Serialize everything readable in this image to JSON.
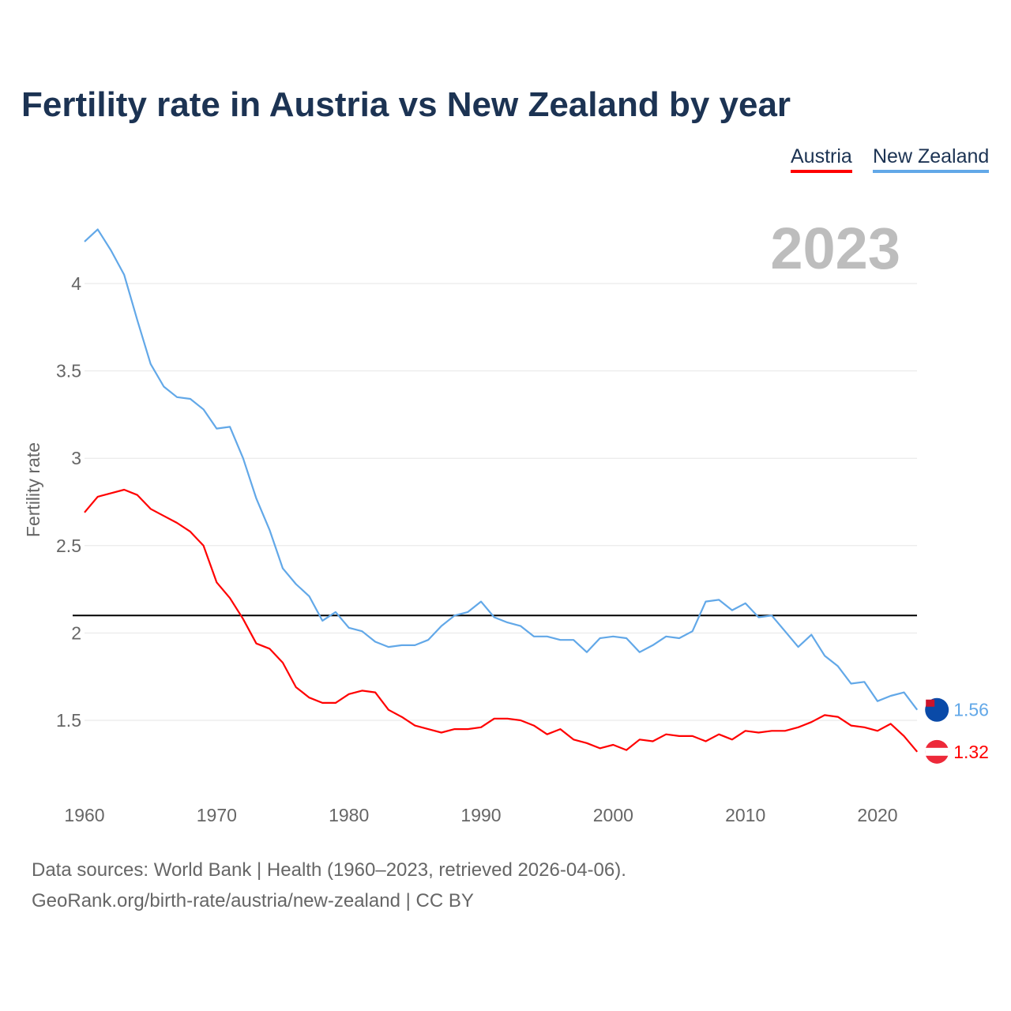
{
  "chart_data": {
    "type": "line",
    "title": "Fertility rate in Austria vs New Zealand by year",
    "xlabel": "",
    "ylabel": "Fertility rate",
    "xlim": [
      1960,
      2023
    ],
    "ylim": [
      1.1,
      4.35
    ],
    "x_ticks": [
      1960,
      1970,
      1980,
      1990,
      2000,
      2010,
      2020
    ],
    "y_ticks": [
      1.5,
      2,
      2.5,
      3,
      3.5,
      4
    ],
    "y_tick_labels": [
      "1.5",
      "2",
      "2.5",
      "3",
      "3.5",
      "4"
    ],
    "grid": true,
    "legend_position": "top-right",
    "year_label": "2023",
    "reference_line": 2.1,
    "x": [
      1960,
      1961,
      1962,
      1963,
      1964,
      1965,
      1966,
      1967,
      1968,
      1969,
      1970,
      1971,
      1972,
      1973,
      1974,
      1975,
      1976,
      1977,
      1978,
      1979,
      1980,
      1981,
      1982,
      1983,
      1984,
      1985,
      1986,
      1987,
      1988,
      1989,
      1990,
      1991,
      1992,
      1993,
      1994,
      1995,
      1996,
      1997,
      1998,
      1999,
      2000,
      2001,
      2002,
      2003,
      2004,
      2005,
      2006,
      2007,
      2008,
      2009,
      2010,
      2011,
      2012,
      2013,
      2014,
      2015,
      2016,
      2017,
      2018,
      2019,
      2020,
      2021,
      2022,
      2023
    ],
    "series": [
      {
        "name": "Austria",
        "color": "#ff0000",
        "end_label": "1.32",
        "values": [
          2.69,
          2.78,
          2.8,
          2.82,
          2.79,
          2.71,
          2.67,
          2.63,
          2.58,
          2.5,
          2.29,
          2.2,
          2.08,
          1.94,
          1.91,
          1.83,
          1.69,
          1.63,
          1.6,
          1.6,
          1.65,
          1.67,
          1.66,
          1.56,
          1.52,
          1.47,
          1.45,
          1.43,
          1.45,
          1.45,
          1.46,
          1.51,
          1.51,
          1.5,
          1.47,
          1.42,
          1.45,
          1.39,
          1.37,
          1.34,
          1.36,
          1.33,
          1.39,
          1.38,
          1.42,
          1.41,
          1.41,
          1.38,
          1.42,
          1.39,
          1.44,
          1.43,
          1.44,
          1.44,
          1.46,
          1.49,
          1.53,
          1.52,
          1.47,
          1.46,
          1.44,
          1.48,
          1.41,
          1.32
        ]
      },
      {
        "name": "New Zealand",
        "color": "#62a8e8",
        "end_label": "1.56",
        "values": [
          4.24,
          4.31,
          4.19,
          4.05,
          3.79,
          3.54,
          3.41,
          3.35,
          3.34,
          3.28,
          3.17,
          3.18,
          3.0,
          2.77,
          2.59,
          2.37,
          2.28,
          2.21,
          2.07,
          2.12,
          2.03,
          2.01,
          1.95,
          1.92,
          1.93,
          1.93,
          1.96,
          2.04,
          2.1,
          2.12,
          2.18,
          2.09,
          2.06,
          2.04,
          1.98,
          1.98,
          1.96,
          1.96,
          1.89,
          1.97,
          1.98,
          1.97,
          1.89,
          1.93,
          1.98,
          1.97,
          2.01,
          2.18,
          2.19,
          2.13,
          2.17,
          2.09,
          2.1,
          2.01,
          1.92,
          1.99,
          1.87,
          1.81,
          1.71,
          1.72,
          1.61,
          1.64,
          1.66,
          1.56
        ]
      }
    ]
  },
  "footer": {
    "line1": "Data sources: World Bank | Health (1960–2023, retrieved 2026-04-06).",
    "line2": "GeoRank.org/birth-rate/austria/new-zealand | CC BY"
  }
}
